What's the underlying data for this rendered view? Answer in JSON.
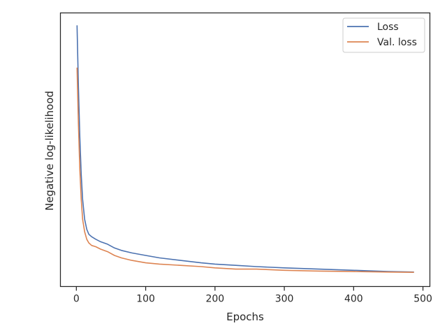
{
  "chart_data": {
    "type": "line",
    "title": "",
    "xlabel": "Epochs",
    "ylabel": "Negative log-likelihood",
    "xlim": [
      -23,
      510
    ],
    "ylim": [
      -0.05,
      1.05
    ],
    "xticks": [
      0,
      100,
      200,
      300,
      400,
      500
    ],
    "yticks": [],
    "grid": false,
    "legend": "top-right",
    "series": [
      {
        "name": "Loss",
        "color": "#4c72b0",
        "points": [
          [
            1,
            1.0
          ],
          [
            3,
            0.75
          ],
          [
            5,
            0.55
          ],
          [
            7,
            0.4
          ],
          [
            9,
            0.3
          ],
          [
            12,
            0.22
          ],
          [
            15,
            0.18
          ],
          [
            18,
            0.16
          ],
          [
            22,
            0.15
          ],
          [
            28,
            0.14
          ],
          [
            35,
            0.13
          ],
          [
            45,
            0.12
          ],
          [
            55,
            0.105
          ],
          [
            65,
            0.095
          ],
          [
            80,
            0.085
          ],
          [
            100,
            0.075
          ],
          [
            120,
            0.065
          ],
          [
            150,
            0.055
          ],
          [
            180,
            0.045
          ],
          [
            200,
            0.04
          ],
          [
            230,
            0.035
          ],
          [
            260,
            0.03
          ],
          [
            300,
            0.025
          ],
          [
            350,
            0.02
          ],
          [
            400,
            0.015
          ],
          [
            450,
            0.01
          ],
          [
            487,
            0.008
          ]
        ]
      },
      {
        "name": "Val. loss",
        "color": "#dd8452",
        "points": [
          [
            1,
            0.83
          ],
          [
            3,
            0.6
          ],
          [
            5,
            0.42
          ],
          [
            7,
            0.3
          ],
          [
            9,
            0.22
          ],
          [
            12,
            0.17
          ],
          [
            15,
            0.14
          ],
          [
            18,
            0.125
          ],
          [
            22,
            0.115
          ],
          [
            28,
            0.11
          ],
          [
            35,
            0.1
          ],
          [
            45,
            0.09
          ],
          [
            55,
            0.075
          ],
          [
            65,
            0.065
          ],
          [
            80,
            0.055
          ],
          [
            100,
            0.045
          ],
          [
            120,
            0.04
          ],
          [
            150,
            0.035
          ],
          [
            180,
            0.03
          ],
          [
            200,
            0.025
          ],
          [
            230,
            0.02
          ],
          [
            260,
            0.02
          ],
          [
            300,
            0.015
          ],
          [
            350,
            0.012
          ],
          [
            400,
            0.01
          ],
          [
            450,
            0.008
          ],
          [
            487,
            0.007
          ]
        ]
      }
    ]
  }
}
